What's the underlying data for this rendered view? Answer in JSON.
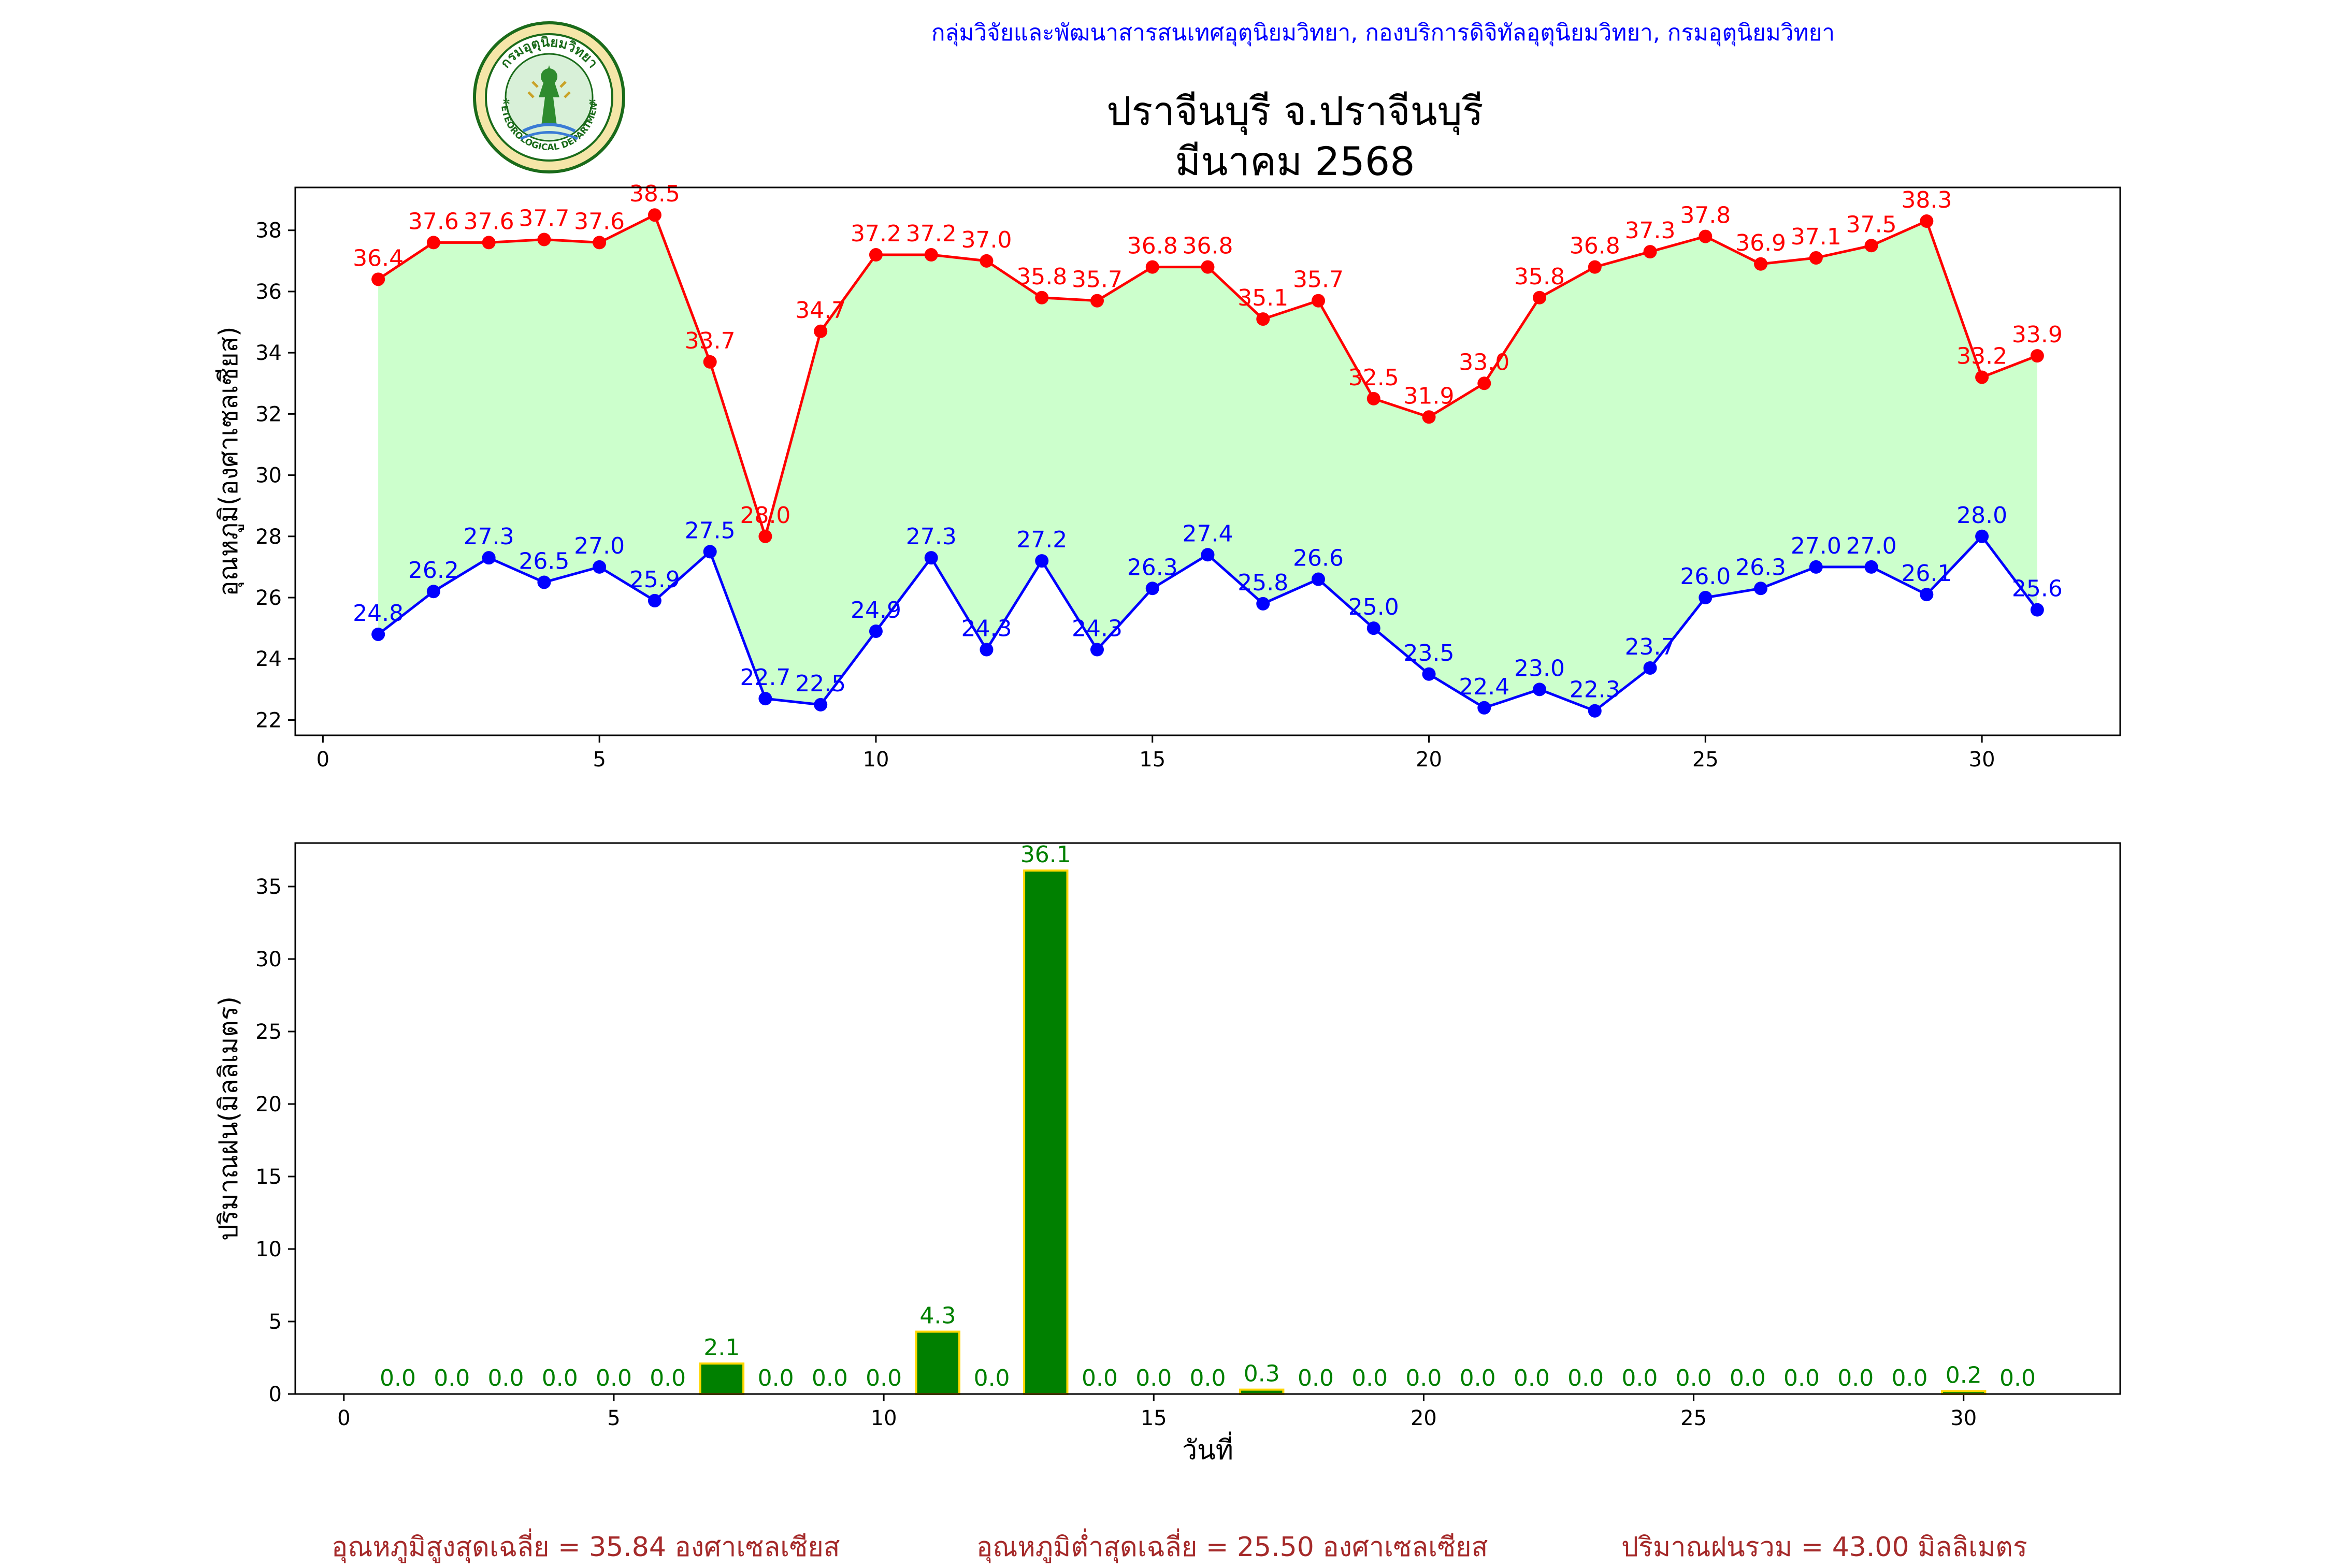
{
  "header": {
    "organization": "กลุ่มวิจัยและพัฒนาสารสนเทศอุตุนิยมวิทยา, กองบริการดิจิทัลอุตุนิยมวิทยา, กรมอุตุนิยมวิทยา",
    "title_line1": "ปราจีนบุรี จ.ปราจีนบุรี",
    "title_line2": "มีนาคม 2568",
    "logo_icon": "meteorological-department-seal-icon",
    "logo_text_top": "กรมอุตุนิยมวิทยา",
    "logo_text_bottom": "METEOROLOGICAL DEPARTMENT"
  },
  "colors": {
    "max_temp": "#ff0000",
    "min_temp": "#0000ff",
    "fill": "#ccffcc",
    "bar_fill": "#008000",
    "bar_edge": "#ffd700",
    "bar_label": "#008000",
    "summary": "#a52a2a",
    "org_text": "#0000ff"
  },
  "chart_data": [
    {
      "type": "line",
      "ylabel": "อุณหภูมิ(องศาเซลเซียส)",
      "xlabel": "",
      "x": [
        1,
        2,
        3,
        4,
        5,
        6,
        7,
        8,
        9,
        10,
        11,
        12,
        13,
        14,
        15,
        16,
        17,
        18,
        19,
        20,
        21,
        22,
        23,
        24,
        25,
        26,
        27,
        28,
        29,
        30,
        31
      ],
      "xlim": [
        -0.5,
        32.5
      ],
      "ylim": [
        21.5,
        39.4
      ],
      "xticks": [
        0,
        5,
        10,
        15,
        20,
        25,
        30
      ],
      "yticks": [
        22,
        24,
        26,
        28,
        30,
        32,
        34,
        36,
        38
      ],
      "fill_between": true,
      "grid": false,
      "series": [
        {
          "key": "max",
          "values": [
            36.4,
            37.6,
            37.6,
            37.7,
            37.6,
            38.5,
            33.7,
            28.0,
            34.7,
            37.2,
            37.2,
            37.0,
            35.8,
            35.7,
            36.8,
            36.8,
            35.1,
            35.7,
            32.5,
            31.9,
            33.0,
            35.8,
            36.8,
            37.3,
            37.8,
            36.9,
            37.1,
            37.5,
            38.3,
            33.2,
            33.9
          ]
        },
        {
          "key": "min",
          "values": [
            24.8,
            26.2,
            27.3,
            26.5,
            27.0,
            25.9,
            27.5,
            22.7,
            22.5,
            24.9,
            27.3,
            24.3,
            27.2,
            24.3,
            26.3,
            27.4,
            25.8,
            26.6,
            25.0,
            23.5,
            22.4,
            23.0,
            22.3,
            23.7,
            26.0,
            26.3,
            27.0,
            27.0,
            26.1,
            28.0,
            25.6
          ]
        }
      ]
    },
    {
      "type": "bar",
      "ylabel": "ปริมาณฝน(มิลลิเมตร)",
      "xlabel": "วันที่",
      "x": [
        1,
        2,
        3,
        4,
        5,
        6,
        7,
        8,
        9,
        10,
        11,
        12,
        13,
        14,
        15,
        16,
        17,
        18,
        19,
        20,
        21,
        22,
        23,
        24,
        25,
        26,
        27,
        28,
        29,
        30,
        31
      ],
      "values": [
        0.0,
        0.0,
        0.0,
        0.0,
        0.0,
        0.0,
        2.1,
        0.0,
        0.0,
        0.0,
        4.3,
        0.0,
        36.1,
        0.0,
        0.0,
        0.0,
        0.3,
        0.0,
        0.0,
        0.0,
        0.0,
        0.0,
        0.0,
        0.0,
        0.0,
        0.0,
        0.0,
        0.0,
        0.0,
        0.2,
        0.0
      ],
      "xlim": [
        -0.9,
        32.9
      ],
      "ylim": [
        0,
        38.0
      ],
      "xticks": [
        0,
        5,
        10,
        15,
        20,
        25,
        30
      ],
      "yticks": [
        0,
        5,
        10,
        15,
        20,
        25,
        30,
        35
      ],
      "grid": false
    }
  ],
  "summary": {
    "avg_max": "อุณหภูมิสูงสุดเฉลี่ย = 35.84 องศาเซลเซียส",
    "avg_min": "อุณหภูมิต่ำสุดเฉลี่ย = 25.50 องศาเซลเซียส",
    "total_rain": "ปริมาณฝนรวม = 43.00 มิลลิเมตร"
  }
}
